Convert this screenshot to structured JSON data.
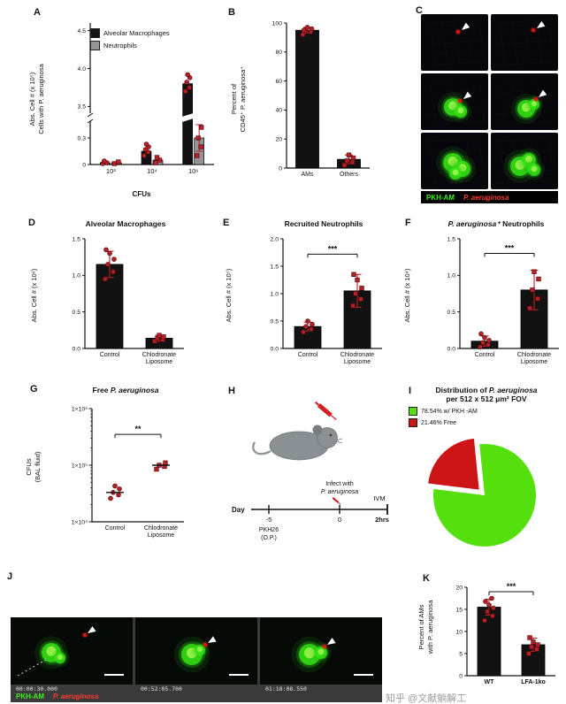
{
  "watermark": {
    "text": "知乎 @文献躺解工",
    "color": "#9b9b9b"
  },
  "colors": {
    "bar_black": "#121212",
    "bar_gray": "#949494",
    "point_red": "#b32025",
    "pie_green": "#55e00e",
    "pie_red": "#cc1416",
    "label_green": "#3bf01c",
    "label_red": "#ff3b30"
  },
  "panels": {
    "A": {
      "letter": "A",
      "ylabel": "Abs. Cell # (x 10⁵)\nCells with P. aeruginosa",
      "xlabel": "CFUs",
      "legend": [
        {
          "label": "Alveolar Macrophages",
          "color": "#121212"
        },
        {
          "label": "Neutrophils",
          "color": "#949494"
        }
      ]
    },
    "B": {
      "letter": "B",
      "ylabel": "Percent of\nCD45⁺ P. aeruginosa⁺"
    },
    "C": {
      "letter": "C",
      "label_left": "PKH-AM",
      "label_right": "P. aeruginosa"
    },
    "D": {
      "letter": "D",
      "title": "Alveolar Macrophages",
      "ylabel": "Abs. Cell # (x 10⁶)"
    },
    "E": {
      "letter": "E",
      "title": "Recruited Neutrophils",
      "ylabel": "Abs. Cell # (x 10⁵)"
    },
    "F": {
      "letter": "F",
      "title_it": "P. aeruginosa⁺",
      "title_rest": " Neutrophils",
      "ylabel": "Abs. Cell # (x 10⁴)"
    },
    "G": {
      "letter": "G",
      "title_pre": "Free ",
      "title_it": "P. aeruginosa",
      "ylabel": "CFUs\n(BAL fluid)"
    },
    "H": {
      "letter": "H",
      "day_label": "Day",
      "minus5": "-5",
      "pkh_line1": "PKH26",
      "pkh_line2": "(O.P.)",
      "zero": "0",
      "infect_line1": "Infect with",
      "infect_line2": "P. aeruginosa",
      "ivm": "IVM",
      "hrs": "2hrs"
    },
    "I": {
      "letter": "I",
      "title_pre": "Distribution of ",
      "title_it": "P. aeruginosa",
      "title_line2": "per 512 x 512 μm² FOV",
      "legend": [
        {
          "label": "78.54% w/ PKH -AM",
          "color": "#55e00e"
        },
        {
          "label": "21.46% Free",
          "color": "#cc1416"
        }
      ]
    },
    "J": {
      "letter": "J",
      "timestamps": [
        "00:00:30.000",
        "00:52:05.700",
        "01:18:08.550"
      ],
      "label_left": "PKH-AM",
      "label_right": "P. aeruginosa"
    },
    "K": {
      "letter": "K",
      "ylabel": "Percent of AMs\nwith P. aeruginosa"
    }
  },
  "chart_data": [
    {
      "id": "A",
      "type": "bar",
      "grouped": true,
      "title": "",
      "xlabel": "CFUs",
      "ylabel": "Abs. Cell # (x 10⁵) Cells with P. aeruginosa",
      "categories": [
        "10³",
        "10⁴",
        "10⁶"
      ],
      "series": [
        {
          "name": "Alveolar Macrophages",
          "color": "#121212",
          "marker": "circle",
          "values": [
            0.02,
            0.15,
            3.8
          ],
          "points": [
            [
              0.01,
              0.02,
              0.04
            ],
            [
              0.1,
              0.14,
              0.17,
              0.2,
              0.23
            ],
            [
              3.7,
              3.75,
              3.82,
              3.88,
              3.92
            ]
          ]
        },
        {
          "name": "Neutrophils",
          "color": "#949494",
          "marker": "square",
          "values": [
            0.02,
            0.05,
            0.3
          ],
          "errors": [
            0,
            0,
            0.15
          ],
          "points": [
            [
              0.01,
              0.03
            ],
            [
              0.02,
              0.05,
              0.08
            ],
            [
              0.1,
              0.2,
              0.3,
              0.42
            ]
          ]
        }
      ],
      "axis_break": {
        "lower_max": 0.5,
        "upper_min": 3.4,
        "upper_max": 4.6
      },
      "ytick_values_lower": [
        0,
        0.3
      ],
      "yticks_lower": [
        "0",
        "0.3"
      ],
      "ytick_values_upper": [
        3.5,
        4.0,
        4.5
      ],
      "yticks_upper": [
        "3.5",
        "4.0",
        "4.5"
      ]
    },
    {
      "id": "B",
      "type": "bar",
      "ylabel": "Percent of CD45⁺ P. aeruginosa⁺",
      "categories": [
        "AMs",
        "Others"
      ],
      "values": [
        95,
        6
      ],
      "errors": [
        2,
        3
      ],
      "points": [
        [
          92,
          94,
          95,
          96,
          97,
          95
        ],
        [
          2,
          4,
          5,
          7,
          9
        ]
      ],
      "markers": [
        "circle",
        "square"
      ],
      "ylim": [
        0,
        100
      ],
      "yticks": [
        0,
        20,
        40,
        60,
        80,
        100
      ],
      "ytick_labels": [
        "0",
        "20",
        "40",
        "60",
        "80",
        "100"
      ]
    },
    {
      "id": "D",
      "type": "bar",
      "title": "Alveolar Macrophages",
      "ylabel": "Abs. Cell # (x 10⁶)",
      "categories": [
        "Control",
        "Chlodronate\nLiposome"
      ],
      "values": [
        1.15,
        0.14
      ],
      "errors": [
        0.18,
        0.04
      ],
      "points": [
        [
          0.95,
          1.05,
          1.15,
          1.22,
          1.3,
          1.35
        ],
        [
          0.1,
          0.12,
          0.14,
          0.16,
          0.18
        ]
      ],
      "markers": [
        "circle",
        "square"
      ],
      "ylim": [
        0,
        1.5
      ],
      "yticks": [
        0,
        0.5,
        1.0,
        1.5
      ],
      "ytick_labels": [
        "0.0",
        "0.5",
        "1.0",
        "1.5"
      ]
    },
    {
      "id": "E",
      "type": "bar",
      "title": "Recruited Neutrophils",
      "ylabel": "Abs. Cell # (x 10⁵)",
      "categories": [
        "Control",
        "Chlodronate\nLiposome"
      ],
      "values": [
        0.4,
        1.05
      ],
      "errors": [
        0.08,
        0.3
      ],
      "points": [
        [
          0.3,
          0.35,
          0.4,
          0.44,
          0.5
        ],
        [
          0.78,
          0.9,
          1.0,
          1.1,
          1.25,
          1.35
        ]
      ],
      "markers": [
        "circle",
        "square"
      ],
      "ylim": [
        0,
        2.0
      ],
      "yticks": [
        0,
        0.5,
        1.0,
        1.5,
        2.0
      ],
      "ytick_labels": [
        "0.0",
        "0.5",
        "1.0",
        "1.5",
        "2.0"
      ],
      "sig": {
        "label": "***",
        "y": 1.72
      }
    },
    {
      "id": "F",
      "type": "bar",
      "title": "P. aeruginosa⁺ Neutrophils",
      "ylabel": "Abs. Cell # (x 10⁴)",
      "categories": [
        "Control",
        "Chlodronate\nLiposome"
      ],
      "values": [
        0.1,
        0.8
      ],
      "errors": [
        0.07,
        0.27
      ],
      "points": [
        [
          0.02,
          0.05,
          0.08,
          0.11,
          0.15,
          0.2
        ],
        [
          0.55,
          0.68,
          0.8,
          0.95,
          1.05
        ]
      ],
      "markers": [
        "circle",
        "square"
      ],
      "ylim": [
        0,
        1.5
      ],
      "yticks": [
        0,
        0.5,
        1.0,
        1.5
      ],
      "ytick_labels": [
        "0.0",
        "0.5",
        "1.0",
        "1.5"
      ],
      "sig": {
        "label": "***",
        "y": 1.3
      }
    },
    {
      "id": "G",
      "type": "scatter",
      "title": "Free P. aeruginosa",
      "ylabel": "CFUs (BAL fluid)",
      "categories": [
        "Control",
        "Chlodronate\nLiposome"
      ],
      "groups": [
        [
          26000,
          30000,
          33000,
          38000,
          43000
        ],
        [
          85000,
          95000,
          100000,
          110000
        ]
      ],
      "medians": [
        33000,
        100000
      ],
      "markers": [
        "circle",
        "square"
      ],
      "ylog": true,
      "ylim": [
        10000,
        1000000
      ],
      "yticks": [
        10000,
        100000,
        1000000
      ],
      "ytick_labels": [
        "1×10⁴",
        "1×10⁵",
        "1×10⁶"
      ],
      "sig": {
        "label": "**",
        "y": 350000
      }
    },
    {
      "id": "I",
      "type": "pie",
      "title": "Distribution of P. aeruginosa per 512 x 512 μm² FOV",
      "slices": [
        {
          "label": "78.54% w/ PKH -AM",
          "value": 78.54,
          "color": "#55e00e"
        },
        {
          "label": "21.46% Free",
          "value": 21.46,
          "color": "#cc1416",
          "explode": true
        }
      ]
    },
    {
      "id": "K",
      "type": "bar",
      "ylabel": "Percent of AMs with P. aeruginosa",
      "categories": [
        "WT",
        "LFA-1ko"
      ],
      "values": [
        15.5,
        7
      ],
      "errors": [
        1.8,
        1.5
      ],
      "points": [
        [
          12.5,
          13.5,
          14.5,
          15.3,
          16,
          16.8,
          17.5
        ],
        [
          5,
          6,
          6.5,
          7,
          7.6,
          8.6
        ]
      ],
      "markers": [
        "circle",
        "square"
      ],
      "ylim": [
        0,
        20
      ],
      "yticks": [
        0,
        5,
        10,
        15,
        20
      ],
      "ytick_labels": [
        "0",
        "5",
        "10",
        "15",
        "20"
      ],
      "xbold": true,
      "sig": {
        "label": "***",
        "y": 19
      }
    }
  ]
}
